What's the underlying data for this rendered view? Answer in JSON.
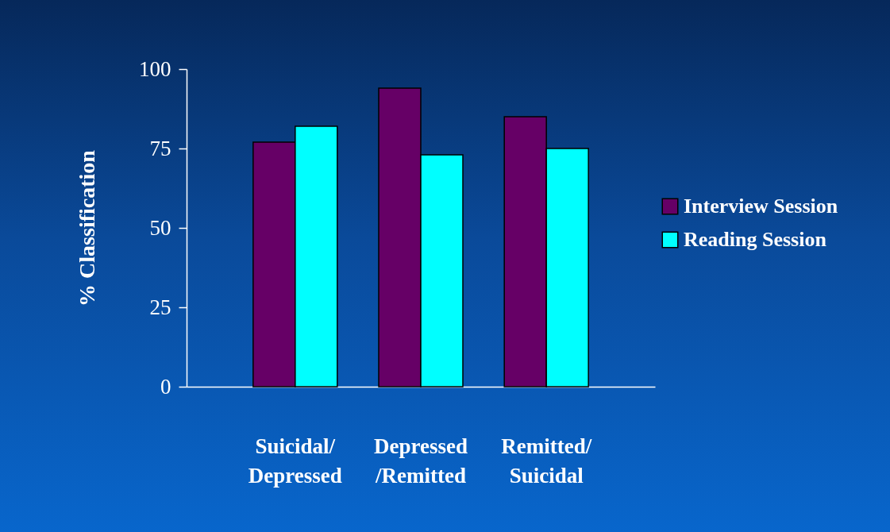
{
  "chart_data": {
    "type": "bar",
    "ylabel": "% Classification",
    "categories": [
      "Suicidal/ Depressed",
      "Depressed /Remitted",
      "Remitted/ Suicidal"
    ],
    "series": [
      {
        "name": "Interview Session",
        "color": "#660066",
        "values": [
          77,
          94,
          85
        ]
      },
      {
        "name": "Reading Session",
        "color": "#00ffff",
        "values": [
          82,
          73,
          75
        ]
      }
    ],
    "ylim": [
      0,
      100
    ],
    "yticks": [
      0,
      25,
      50,
      75,
      100
    ],
    "grid": false,
    "legend": "right"
  }
}
